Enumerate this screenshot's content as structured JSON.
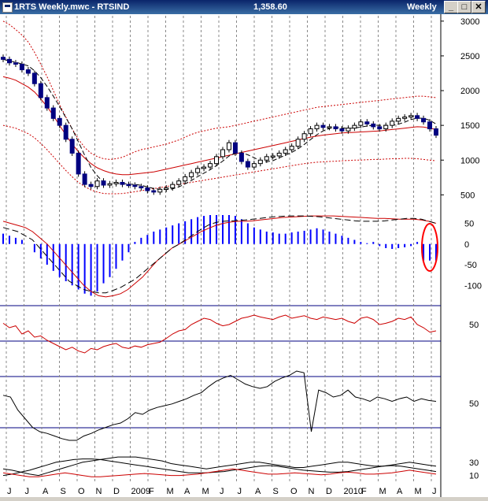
{
  "window": {
    "title": "1RTS Weekly.mwc - RTSIND",
    "last_value": "1,358.60",
    "period": "Weekly",
    "buttons": {
      "minimize": "_",
      "restore": "□",
      "close": "✕"
    }
  },
  "colors": {
    "price_up": "#000000",
    "price_down": "#000080",
    "envelope": "#cc0000",
    "histogram": "#0000ff",
    "highlight": "#ff0000",
    "grid": "#888888"
  },
  "x_axis_labels": [
    "J",
    "J",
    "A",
    "S",
    "O",
    "N",
    "D",
    "2009",
    "F",
    "M",
    "A",
    "M",
    "J",
    "J",
    "A",
    "S",
    "O",
    "N",
    "D",
    "2010",
    "F",
    "M",
    "A",
    "M",
    "J"
  ],
  "chart_data": [
    {
      "type": "candlestick",
      "panel": "price",
      "ytick_labels": [
        "3000",
        "2500",
        "2000",
        "1500",
        "1000",
        "500"
      ],
      "ylim": [
        300,
        3100
      ],
      "close": [
        2450,
        2400,
        2380,
        2300,
        2250,
        2100,
        1900,
        1750,
        1600,
        1500,
        1300,
        1100,
        800,
        650,
        620,
        700,
        640,
        660,
        680,
        650,
        640,
        620,
        600,
        560,
        540,
        580,
        600,
        650,
        700,
        760,
        820,
        880,
        900,
        950,
        1050,
        1150,
        1250,
        1100,
        980,
        900,
        950,
        1000,
        1050,
        1060,
        1100,
        1150,
        1200,
        1300,
        1380,
        1450,
        1500,
        1470,
        1480,
        1450,
        1420,
        1460,
        1500,
        1550,
        1520,
        1480,
        1450,
        1500,
        1560,
        1600,
        1620,
        1640,
        1600,
        1550,
        1450,
        1358.6
      ],
      "upper_envelope": [
        3000,
        2950,
        2880,
        2800,
        2700,
        2550,
        2380,
        2200,
        2000,
        1800,
        1620,
        1450,
        1300,
        1180,
        1100,
        1050,
        1020,
        1010,
        1020,
        1040,
        1080,
        1120,
        1150,
        1170,
        1190,
        1210,
        1230,
        1260,
        1290,
        1330,
        1370,
        1400,
        1420,
        1440,
        1460,
        1470,
        1480,
        1500,
        1520,
        1540,
        1560,
        1580,
        1600,
        1620,
        1640,
        1660,
        1680,
        1700,
        1720,
        1740,
        1760,
        1770,
        1780,
        1790,
        1800,
        1810,
        1820,
        1830,
        1840,
        1850,
        1860,
        1870,
        1880,
        1890,
        1900,
        1910,
        1920,
        1920,
        1910,
        1900
      ],
      "middle_ma": [
        2200,
        2180,
        2150,
        2100,
        2050,
        1980,
        1880,
        1770,
        1640,
        1500,
        1360,
        1230,
        1120,
        1030,
        950,
        890,
        850,
        820,
        800,
        790,
        790,
        800,
        810,
        820,
        830,
        850,
        870,
        890,
        910,
        930,
        950,
        970,
        990,
        1010,
        1030,
        1050,
        1070,
        1090,
        1110,
        1130,
        1150,
        1170,
        1190,
        1210,
        1230,
        1250,
        1270,
        1290,
        1310,
        1330,
        1345,
        1360,
        1370,
        1380,
        1390,
        1395,
        1400,
        1405,
        1410,
        1415,
        1420,
        1430,
        1440,
        1450,
        1460,
        1470,
        1480,
        1475,
        1460,
        1440
      ],
      "lower_envelope": [
        1500,
        1480,
        1460,
        1420,
        1380,
        1320,
        1240,
        1150,
        1050,
        950,
        850,
        760,
        680,
        620,
        570,
        540,
        520,
        515,
        515,
        520,
        530,
        545,
        560,
        575,
        590,
        605,
        620,
        635,
        650,
        665,
        680,
        695,
        710,
        725,
        740,
        755,
        770,
        785,
        800,
        815,
        830,
        845,
        860,
        875,
        890,
        905,
        920,
        935,
        950,
        960,
        970,
        975,
        980,
        985,
        990,
        995,
        1000,
        1000,
        1005,
        1010,
        1010,
        1015,
        1020,
        1020,
        1025,
        1025,
        1020,
        1010,
        1000,
        990
      ]
    },
    {
      "type": "histogram",
      "panel": "oscillator",
      "ytick_labels": [
        "50",
        "0",
        "-50",
        "-100"
      ],
      "ylim": [
        -130,
        70
      ],
      "values": [
        25,
        20,
        15,
        10,
        0,
        -20,
        -35,
        -50,
        -65,
        -80,
        -90,
        -100,
        -110,
        -120,
        -125,
        -115,
        -95,
        -80,
        -60,
        -40,
        -20,
        5,
        15,
        22,
        30,
        35,
        40,
        45,
        50,
        55,
        60,
        65,
        68,
        70,
        70,
        70,
        70,
        68,
        60,
        50,
        40,
        35,
        30,
        28,
        25,
        25,
        28,
        30,
        32,
        35,
        38,
        35,
        30,
        25,
        20,
        15,
        10,
        5,
        2,
        5,
        -5,
        -10,
        -12,
        -10,
        -8,
        -5,
        5,
        -40,
        -40,
        -40
      ],
      "signal_red": [
        55,
        50,
        45,
        40,
        30,
        15,
        0,
        -20,
        -40,
        -60,
        -80,
        -100,
        -115,
        -125,
        -128,
        -125,
        -120,
        -110,
        -95,
        -80,
        -60,
        -40,
        -25,
        -10,
        0,
        10,
        20,
        30,
        38,
        45,
        50,
        53,
        55,
        55,
        56,
        58,
        60,
        62,
        64,
        65,
        66,
        67,
        68,
        68,
        68,
        68,
        67,
        66,
        65,
        64,
        63,
        62,
        62,
        61,
        60,
        60,
        60,
        58,
        55,
        50
      ],
      "signal_dashed": [
        40,
        35,
        30,
        20,
        10,
        -10,
        -30,
        -50,
        -70,
        -90,
        -100,
        -110,
        -115,
        -118,
        -118,
        -112,
        -105,
        -95,
        -85,
        -70,
        -55,
        -40,
        -25,
        -10,
        0,
        12,
        24,
        36,
        46,
        52,
        55,
        56,
        57,
        58,
        60,
        62,
        64,
        66,
        67,
        68,
        68,
        68,
        67,
        66,
        64,
        62,
        60,
        58,
        56,
        55,
        55,
        55,
        56,
        58,
        60,
        62,
        62,
        60,
        55,
        50
      ]
    },
    {
      "type": "line",
      "panel": "rsi",
      "ytick_labels": [
        "50"
      ],
      "ylim": [
        0,
        100
      ],
      "values": [
        62,
        55,
        58,
        45,
        50,
        40,
        42,
        35,
        30,
        25,
        20,
        24,
        18,
        15,
        22,
        20,
        25,
        28,
        30,
        24,
        22,
        26,
        24,
        28,
        30,
        32,
        38,
        45,
        50,
        52,
        60,
        65,
        70,
        68,
        62,
        58,
        60,
        65,
        70,
        72,
        75,
        72,
        70,
        68,
        72,
        75,
        70,
        72,
        74,
        70,
        68,
        72,
        70,
        68,
        70,
        65,
        62,
        70,
        72,
        68,
        60,
        62,
        65,
        70,
        68,
        72,
        60,
        55,
        48,
        50
      ]
    },
    {
      "type": "line",
      "panel": "stochastic",
      "ytick_labels": [
        "50"
      ],
      "ylim": [
        0,
        100
      ],
      "values": [
        62,
        60,
        45,
        35,
        25,
        20,
        18,
        15,
        12,
        10,
        10,
        15,
        18,
        22,
        25,
        28,
        30,
        35,
        42,
        40,
        45,
        48,
        50,
        52,
        55,
        58,
        62,
        65,
        72,
        78,
        82,
        85,
        80,
        75,
        72,
        70,
        72,
        78,
        82,
        85,
        90,
        88,
        20,
        68,
        65,
        60,
        62,
        68,
        60,
        58,
        55,
        60,
        58,
        55,
        58,
        60,
        55,
        58,
        56,
        55
      ]
    },
    {
      "type": "line",
      "panel": "dmi",
      "ytick_labels": [
        "30",
        "10"
      ],
      "ylim": [
        0,
        50
      ],
      "series_black_1": [
        20,
        18,
        15,
        12,
        10,
        14,
        18,
        22,
        26,
        30,
        32,
        34,
        36,
        38,
        38,
        38,
        36,
        34,
        32,
        28,
        26,
        24,
        22,
        20,
        22,
        24,
        26,
        28,
        30,
        30,
        28,
        26,
        24,
        22,
        22,
        24,
        26,
        28,
        30,
        30,
        28,
        26,
        24,
        24,
        26,
        28,
        30,
        28,
        26,
        24
      ],
      "series_black_2": [
        10,
        12,
        15,
        18,
        22,
        26,
        30,
        32,
        34,
        35,
        35,
        34,
        32,
        30,
        28,
        26,
        24,
        22,
        20,
        18,
        16,
        14,
        14,
        14,
        15,
        16,
        18,
        20,
        22,
        24,
        25,
        24,
        22,
        20,
        18,
        17,
        16,
        15,
        15,
        16,
        18,
        20,
        22,
        24,
        25,
        24,
        22,
        20,
        18,
        16
      ],
      "series_red": [
        14,
        12,
        10,
        8,
        8,
        10,
        12,
        14,
        12,
        10,
        8,
        8,
        9,
        10,
        11,
        12,
        13,
        12,
        11,
        10,
        10,
        11,
        12,
        14,
        16,
        18,
        20,
        18,
        16,
        14,
        12,
        12,
        13,
        14,
        13,
        12,
        11,
        12,
        14,
        15,
        14,
        12,
        12,
        13,
        14,
        16,
        18,
        16,
        14,
        12
      ]
    }
  ]
}
